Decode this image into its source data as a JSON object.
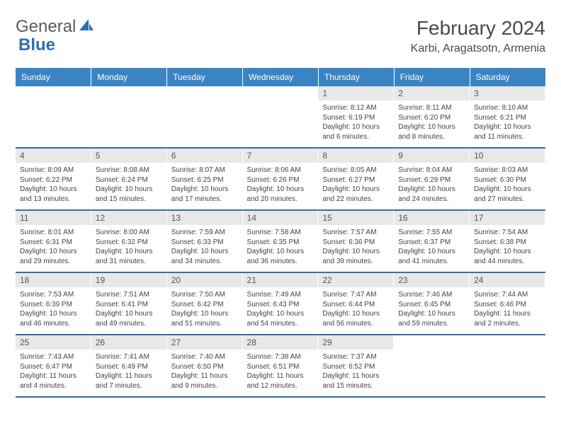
{
  "logo": {
    "text1": "General",
    "text2": "Blue"
  },
  "title": "February 2024",
  "location": "Karbi, Aragatsotn, Armenia",
  "colors": {
    "headerBg": "#3b84c4",
    "dayNumBg": "#e8e8e8",
    "rowBorder": "#2f6fb0",
    "logoBlue": "#2f6fb0"
  },
  "dayHeaders": [
    "Sunday",
    "Monday",
    "Tuesday",
    "Wednesday",
    "Thursday",
    "Friday",
    "Saturday"
  ],
  "weeks": [
    [
      {
        "n": "",
        "sr": "",
        "ss": "",
        "dl": ""
      },
      {
        "n": "",
        "sr": "",
        "ss": "",
        "dl": ""
      },
      {
        "n": "",
        "sr": "",
        "ss": "",
        "dl": ""
      },
      {
        "n": "",
        "sr": "",
        "ss": "",
        "dl": ""
      },
      {
        "n": "1",
        "sr": "Sunrise: 8:12 AM",
        "ss": "Sunset: 6:19 PM",
        "dl": "Daylight: 10 hours and 6 minutes."
      },
      {
        "n": "2",
        "sr": "Sunrise: 8:11 AM",
        "ss": "Sunset: 6:20 PM",
        "dl": "Daylight: 10 hours and 8 minutes."
      },
      {
        "n": "3",
        "sr": "Sunrise: 8:10 AM",
        "ss": "Sunset: 6:21 PM",
        "dl": "Daylight: 10 hours and 11 minutes."
      }
    ],
    [
      {
        "n": "4",
        "sr": "Sunrise: 8:09 AM",
        "ss": "Sunset: 6:22 PM",
        "dl": "Daylight: 10 hours and 13 minutes."
      },
      {
        "n": "5",
        "sr": "Sunrise: 8:08 AM",
        "ss": "Sunset: 6:24 PM",
        "dl": "Daylight: 10 hours and 15 minutes."
      },
      {
        "n": "6",
        "sr": "Sunrise: 8:07 AM",
        "ss": "Sunset: 6:25 PM",
        "dl": "Daylight: 10 hours and 17 minutes."
      },
      {
        "n": "7",
        "sr": "Sunrise: 8:06 AM",
        "ss": "Sunset: 6:26 PM",
        "dl": "Daylight: 10 hours and 20 minutes."
      },
      {
        "n": "8",
        "sr": "Sunrise: 8:05 AM",
        "ss": "Sunset: 6:27 PM",
        "dl": "Daylight: 10 hours and 22 minutes."
      },
      {
        "n": "9",
        "sr": "Sunrise: 8:04 AM",
        "ss": "Sunset: 6:29 PM",
        "dl": "Daylight: 10 hours and 24 minutes."
      },
      {
        "n": "10",
        "sr": "Sunrise: 8:03 AM",
        "ss": "Sunset: 6:30 PM",
        "dl": "Daylight: 10 hours and 27 minutes."
      }
    ],
    [
      {
        "n": "11",
        "sr": "Sunrise: 8:01 AM",
        "ss": "Sunset: 6:31 PM",
        "dl": "Daylight: 10 hours and 29 minutes."
      },
      {
        "n": "12",
        "sr": "Sunrise: 8:00 AM",
        "ss": "Sunset: 6:32 PM",
        "dl": "Daylight: 10 hours and 31 minutes."
      },
      {
        "n": "13",
        "sr": "Sunrise: 7:59 AM",
        "ss": "Sunset: 6:33 PM",
        "dl": "Daylight: 10 hours and 34 minutes."
      },
      {
        "n": "14",
        "sr": "Sunrise: 7:58 AM",
        "ss": "Sunset: 6:35 PM",
        "dl": "Daylight: 10 hours and 36 minutes."
      },
      {
        "n": "15",
        "sr": "Sunrise: 7:57 AM",
        "ss": "Sunset: 6:36 PM",
        "dl": "Daylight: 10 hours and 39 minutes."
      },
      {
        "n": "16",
        "sr": "Sunrise: 7:55 AM",
        "ss": "Sunset: 6:37 PM",
        "dl": "Daylight: 10 hours and 41 minutes."
      },
      {
        "n": "17",
        "sr": "Sunrise: 7:54 AM",
        "ss": "Sunset: 6:38 PM",
        "dl": "Daylight: 10 hours and 44 minutes."
      }
    ],
    [
      {
        "n": "18",
        "sr": "Sunrise: 7:53 AM",
        "ss": "Sunset: 6:39 PM",
        "dl": "Daylight: 10 hours and 46 minutes."
      },
      {
        "n": "19",
        "sr": "Sunrise: 7:51 AM",
        "ss": "Sunset: 6:41 PM",
        "dl": "Daylight: 10 hours and 49 minutes."
      },
      {
        "n": "20",
        "sr": "Sunrise: 7:50 AM",
        "ss": "Sunset: 6:42 PM",
        "dl": "Daylight: 10 hours and 51 minutes."
      },
      {
        "n": "21",
        "sr": "Sunrise: 7:49 AM",
        "ss": "Sunset: 6:43 PM",
        "dl": "Daylight: 10 hours and 54 minutes."
      },
      {
        "n": "22",
        "sr": "Sunrise: 7:47 AM",
        "ss": "Sunset: 6:44 PM",
        "dl": "Daylight: 10 hours and 56 minutes."
      },
      {
        "n": "23",
        "sr": "Sunrise: 7:46 AM",
        "ss": "Sunset: 6:45 PM",
        "dl": "Daylight: 10 hours and 59 minutes."
      },
      {
        "n": "24",
        "sr": "Sunrise: 7:44 AM",
        "ss": "Sunset: 6:46 PM",
        "dl": "Daylight: 11 hours and 2 minutes."
      }
    ],
    [
      {
        "n": "25",
        "sr": "Sunrise: 7:43 AM",
        "ss": "Sunset: 6:47 PM",
        "dl": "Daylight: 11 hours and 4 minutes."
      },
      {
        "n": "26",
        "sr": "Sunrise: 7:41 AM",
        "ss": "Sunset: 6:49 PM",
        "dl": "Daylight: 11 hours and 7 minutes."
      },
      {
        "n": "27",
        "sr": "Sunrise: 7:40 AM",
        "ss": "Sunset: 6:50 PM",
        "dl": "Daylight: 11 hours and 9 minutes."
      },
      {
        "n": "28",
        "sr": "Sunrise: 7:38 AM",
        "ss": "Sunset: 6:51 PM",
        "dl": "Daylight: 11 hours and 12 minutes."
      },
      {
        "n": "29",
        "sr": "Sunrise: 7:37 AM",
        "ss": "Sunset: 6:52 PM",
        "dl": "Daylight: 11 hours and 15 minutes."
      },
      {
        "n": "",
        "sr": "",
        "ss": "",
        "dl": ""
      },
      {
        "n": "",
        "sr": "",
        "ss": "",
        "dl": ""
      }
    ]
  ]
}
